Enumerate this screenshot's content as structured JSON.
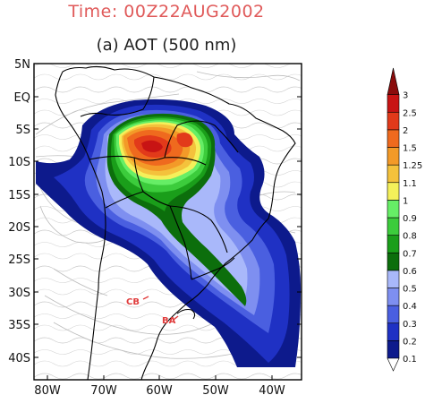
{
  "header": {
    "time_title": "Time: 00Z22AUG2002",
    "map_title": "(a) AOT (500 nm)"
  },
  "map": {
    "lat_ticks": [
      "5N",
      "EQ",
      "5S",
      "10S",
      "15S",
      "20S",
      "25S",
      "30S",
      "35S",
      "40S"
    ],
    "lon_ticks": [
      "80W",
      "70W",
      "60W",
      "50W",
      "40W"
    ],
    "sites": [
      {
        "label": "CB",
        "lon": -64.2,
        "lat": -31.4
      },
      {
        "label": "BA",
        "lon": -58.4,
        "lat": -34.6
      }
    ]
  },
  "colorbar": {
    "labels": [
      "0.1",
      "0.2",
      "0.3",
      "0.4",
      "0.5",
      "0.6",
      "0.7",
      "0.8",
      "0.9",
      "1",
      "1.1",
      "1.25",
      "1.5",
      "2",
      "2.5",
      "3"
    ],
    "colors": [
      "#0d1a8c",
      "#1f31c4",
      "#4a5fe0",
      "#7e8ff0",
      "#a9b8fa",
      "#0c6e0c",
      "#1a9e1a",
      "#3ccc3c",
      "#66ee66",
      "#f4f05a",
      "#f4c23c",
      "#f39a28",
      "#ef6a1e",
      "#e23a1a",
      "#c81414",
      "#8a0c0c"
    ]
  },
  "colors": {
    "title_red": "#e05a5a",
    "site_red": "#e03c3c",
    "streamline": "#b8b8b8",
    "coast": "#000000"
  }
}
